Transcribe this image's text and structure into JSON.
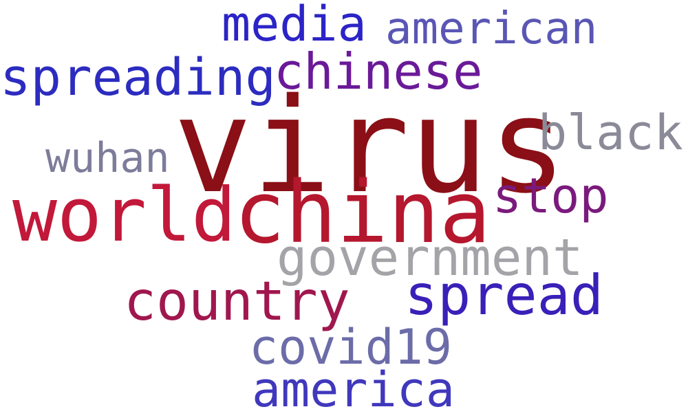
{
  "words": {
    "virus": {
      "text": "virus",
      "color": "#8b0f16"
    },
    "china": {
      "text": "china",
      "color": "#b5172e"
    },
    "world": {
      "text": "world",
      "color": "#c2183a"
    },
    "media": {
      "text": "media",
      "color": "#2c24c6"
    },
    "american": {
      "text": "american",
      "color": "#5a56b4"
    },
    "chinese": {
      "text": "chinese",
      "color": "#6a1a98"
    },
    "spreading": {
      "text": "spreading",
      "color": "#2c2cc0"
    },
    "black": {
      "text": "black",
      "color": "#8a8a98"
    },
    "wuhan": {
      "text": "wuhan",
      "color": "#7d7c9a"
    },
    "stop": {
      "text": "stop",
      "color": "#7a1a7c"
    },
    "government": {
      "text": "government",
      "color": "#a3a3a8"
    },
    "spread": {
      "text": "spread",
      "color": "#3a20b8"
    },
    "country": {
      "text": "country",
      "color": "#a0174e"
    },
    "covid19": {
      "text": "covid19",
      "color": "#6b6ca8"
    },
    "america": {
      "text": "america",
      "color": "#4038bc"
    }
  }
}
